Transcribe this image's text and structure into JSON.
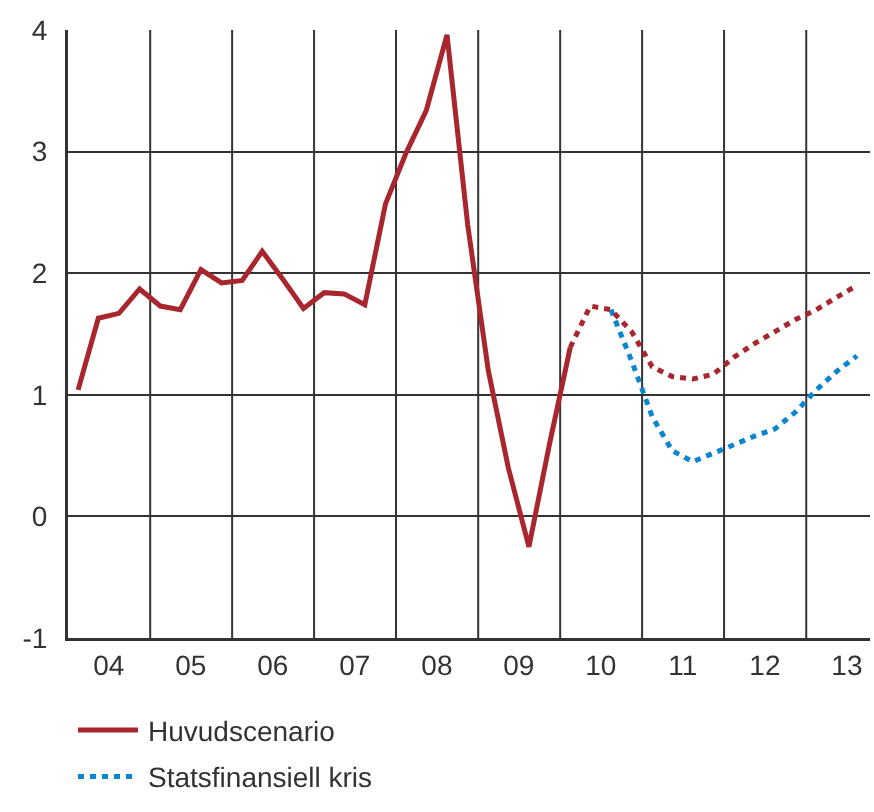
{
  "chart_data": {
    "type": "line",
    "xlim": [
      "2004-01-01",
      "2013-10-12"
    ],
    "ylim": [
      -1,
      4
    ],
    "yticks": [
      -1,
      0,
      1,
      2,
      3,
      4
    ],
    "xticks": [
      {
        "value": "2004-07-01",
        "label": "04"
      },
      {
        "value": "2005-07-01",
        "label": "05"
      },
      {
        "value": "2006-07-01",
        "label": "06"
      },
      {
        "value": "2007-07-01",
        "label": "07"
      },
      {
        "value": "2008-07-01",
        "label": "08"
      },
      {
        "value": "2009-07-01",
        "label": "09"
      },
      {
        "value": "2010-07-01",
        "label": "10"
      },
      {
        "value": "2011-07-01",
        "label": "11"
      },
      {
        "value": "2012-07-01",
        "label": "12"
      },
      {
        "value": "2013-07-01",
        "label": "13"
      },
      {
        "value": "2005-01-01",
        "label": null
      },
      {
        "value": "2006-01-01",
        "label": null
      },
      {
        "value": "2007-01-01",
        "label": null
      },
      {
        "value": "2008-01-01",
        "label": null
      },
      {
        "value": "2009-01-01",
        "label": null
      },
      {
        "value": "2010-01-01",
        "label": null
      },
      {
        "value": "2011-01-01",
        "label": null
      },
      {
        "value": "2012-01-01",
        "label": null
      },
      {
        "value": "2013-01-01",
        "label": null
      }
    ],
    "grid": true,
    "legend": "bottom",
    "marker": "none",
    "series": [
      {
        "name": "Huvudscenario",
        "color": "#a8262e",
        "line_style": "solid",
        "x": [
          "2004-02-15",
          "2004-05-15",
          "2004-08-15",
          "2004-11-15",
          "2005-02-15",
          "2005-05-15",
          "2005-08-15",
          "2005-11-15",
          "2006-02-15",
          "2006-05-15",
          "2006-08-15",
          "2006-11-15",
          "2007-02-15",
          "2007-05-15",
          "2007-08-15",
          "2007-11-15",
          "2008-02-15",
          "2008-05-15",
          "2008-08-15",
          "2008-11-15",
          "2009-02-15",
          "2009-05-15",
          "2009-08-15",
          "2009-11-15",
          "2010-02-15"
        ],
        "values": [
          1.04,
          1.63,
          1.67,
          1.87,
          1.73,
          1.7,
          2.03,
          1.92,
          1.94,
          2.18,
          1.95,
          1.71,
          1.84,
          1.83,
          1.74,
          2.57,
          2.99,
          3.34,
          3.96,
          2.4,
          1.2,
          0.4,
          -0.25,
          0.6,
          1.39
        ]
      },
      {
        "name": "Statsfinansiell kris",
        "color": "#0a86d0",
        "line_style": "dotted",
        "x": [
          "2010-08-15",
          "2010-11-15",
          "2011-02-15",
          "2011-05-15",
          "2011-08-15",
          "2011-11-15",
          "2012-02-15",
          "2012-05-15",
          "2012-08-15",
          "2012-11-15",
          "2013-02-15",
          "2013-05-15",
          "2013-08-15"
        ],
        "values": [
          1.7,
          1.28,
          0.82,
          0.54,
          0.45,
          0.52,
          0.59,
          0.66,
          0.72,
          0.86,
          1.04,
          1.19,
          1.32
        ]
      },
      {
        "color": "#a8262e",
        "line_style": "dotted",
        "x": [
          "2010-02-15",
          "2010-05-15",
          "2010-08-15",
          "2010-11-15",
          "2011-02-15",
          "2011-05-15",
          "2011-08-15",
          "2011-11-15",
          "2012-02-15",
          "2012-05-15",
          "2012-08-15",
          "2012-11-15",
          "2013-02-15",
          "2013-05-15",
          "2013-08-15"
        ],
        "values": [
          1.39,
          1.73,
          1.7,
          1.52,
          1.23,
          1.15,
          1.13,
          1.17,
          1.31,
          1.42,
          1.52,
          1.62,
          1.7,
          1.8,
          1.9
        ]
      }
    ]
  }
}
